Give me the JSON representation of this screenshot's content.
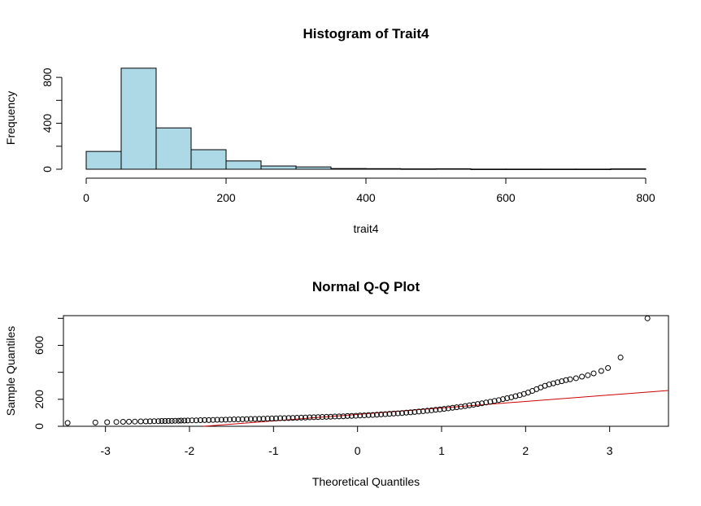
{
  "chart_data": [
    {
      "type": "bar",
      "title": "Histogram of Trait4",
      "xlabel": "trait4",
      "ylabel": "Frequency",
      "xlim": [
        0,
        800
      ],
      "ylim": [
        0,
        900
      ],
      "x_ticks": [
        "0",
        "200",
        "400",
        "600",
        "800"
      ],
      "y_ticks": [
        "0",
        "400",
        "800"
      ],
      "bin_width": 50,
      "bins": [
        {
          "start": 0,
          "end": 50,
          "count": 155
        },
        {
          "start": 50,
          "end": 100,
          "count": 880
        },
        {
          "start": 100,
          "end": 150,
          "count": 360
        },
        {
          "start": 150,
          "end": 200,
          "count": 170
        },
        {
          "start": 200,
          "end": 250,
          "count": 72
        },
        {
          "start": 250,
          "end": 300,
          "count": 28
        },
        {
          "start": 300,
          "end": 350,
          "count": 20
        },
        {
          "start": 350,
          "end": 400,
          "count": 6
        },
        {
          "start": 400,
          "end": 450,
          "count": 5
        },
        {
          "start": 450,
          "end": 500,
          "count": 3
        },
        {
          "start": 500,
          "end": 550,
          "count": 4
        },
        {
          "start": 550,
          "end": 600,
          "count": 1
        },
        {
          "start": 600,
          "end": 650,
          "count": 1
        },
        {
          "start": 650,
          "end": 700,
          "count": 1
        },
        {
          "start": 700,
          "end": 750,
          "count": 1
        },
        {
          "start": 750,
          "end": 800,
          "count": 3
        }
      ],
      "bar_color": "#add8e6",
      "edge_color": "#000000"
    },
    {
      "type": "scatter",
      "title": "Normal Q-Q Plot",
      "xlabel": "Theoretical Quantiles",
      "ylabel": "Sample Quantiles",
      "xlim": [
        -3.5,
        3.7
      ],
      "ylim": [
        0,
        820
      ],
      "x_ticks": [
        "-3",
        "-2",
        "-1",
        "0",
        "1",
        "2",
        "3"
      ],
      "y_ticks": [
        "0",
        "200",
        "600"
      ],
      "points": [
        [
          -3.45,
          25
        ],
        [
          -3.12,
          28
        ],
        [
          -2.98,
          30
        ],
        [
          -2.87,
          32
        ],
        [
          -2.79,
          33
        ],
        [
          -2.72,
          34
        ],
        [
          -2.65,
          35
        ],
        [
          -2.58,
          36
        ],
        [
          -2.52,
          36
        ],
        [
          -2.47,
          37
        ],
        [
          -2.42,
          38
        ],
        [
          -2.37,
          38
        ],
        [
          -2.33,
          39
        ],
        [
          -2.29,
          39
        ],
        [
          -2.25,
          40
        ],
        [
          -2.21,
          40
        ],
        [
          -2.17,
          41
        ],
        [
          -2.13,
          41
        ],
        [
          -2.1,
          42
        ],
        [
          -2.06,
          42
        ],
        [
          -2.02,
          43
        ],
        [
          -1.97,
          44
        ],
        [
          -1.92,
          44
        ],
        [
          -1.87,
          45
        ],
        [
          -1.82,
          46
        ],
        [
          -1.77,
          46
        ],
        [
          -1.72,
          47
        ],
        [
          -1.67,
          48
        ],
        [
          -1.62,
          48
        ],
        [
          -1.57,
          49
        ],
        [
          -1.52,
          50
        ],
        [
          -1.47,
          51
        ],
        [
          -1.42,
          51
        ],
        [
          -1.37,
          52
        ],
        [
          -1.32,
          53
        ],
        [
          -1.27,
          54
        ],
        [
          -1.22,
          54
        ],
        [
          -1.17,
          55
        ],
        [
          -1.12,
          56
        ],
        [
          -1.07,
          57
        ],
        [
          -1.02,
          58
        ],
        [
          -0.97,
          59
        ],
        [
          -0.92,
          60
        ],
        [
          -0.87,
          60
        ],
        [
          -0.82,
          61
        ],
        [
          -0.77,
          62
        ],
        [
          -0.72,
          63
        ],
        [
          -0.67,
          64
        ],
        [
          -0.62,
          65
        ],
        [
          -0.57,
          66
        ],
        [
          -0.52,
          67
        ],
        [
          -0.47,
          68
        ],
        [
          -0.42,
          69
        ],
        [
          -0.37,
          70
        ],
        [
          -0.32,
          71
        ],
        [
          -0.27,
          72
        ],
        [
          -0.22,
          73
        ],
        [
          -0.17,
          74
        ],
        [
          -0.12,
          76
        ],
        [
          -0.07,
          77
        ],
        [
          -0.02,
          78
        ],
        [
          0.03,
          80
        ],
        [
          0.08,
          81
        ],
        [
          0.13,
          83
        ],
        [
          0.18,
          84
        ],
        [
          0.23,
          86
        ],
        [
          0.28,
          88
        ],
        [
          0.33,
          90
        ],
        [
          0.38,
          92
        ],
        [
          0.43,
          94
        ],
        [
          0.48,
          96
        ],
        [
          0.53,
          98
        ],
        [
          0.58,
          101
        ],
        [
          0.63,
          103
        ],
        [
          0.68,
          106
        ],
        [
          0.73,
          109
        ],
        [
          0.78,
          112
        ],
        [
          0.83,
          115
        ],
        [
          0.88,
          118
        ],
        [
          0.93,
          122
        ],
        [
          0.98,
          125
        ],
        [
          1.03,
          129
        ],
        [
          1.08,
          133
        ],
        [
          1.13,
          137
        ],
        [
          1.18,
          141
        ],
        [
          1.23,
          145
        ],
        [
          1.28,
          150
        ],
        [
          1.33,
          155
        ],
        [
          1.38,
          160
        ],
        [
          1.43,
          165
        ],
        [
          1.48,
          170
        ],
        [
          1.53,
          176
        ],
        [
          1.58,
          182
        ],
        [
          1.63,
          188
        ],
        [
          1.68,
          194
        ],
        [
          1.73,
          201
        ],
        [
          1.78,
          208
        ],
        [
          1.83,
          215
        ],
        [
          1.88,
          223
        ],
        [
          1.93,
          231
        ],
        [
          1.98,
          240
        ],
        [
          2.03,
          250
        ],
        [
          2.08,
          262
        ],
        [
          2.13,
          275
        ],
        [
          2.18,
          288
        ],
        [
          2.23,
          300
        ],
        [
          2.28,
          310
        ],
        [
          2.33,
          318
        ],
        [
          2.38,
          326
        ],
        [
          2.43,
          334
        ],
        [
          2.48,
          342
        ],
        [
          2.53,
          348
        ],
        [
          2.6,
          356
        ],
        [
          2.67,
          368
        ],
        [
          2.74,
          378
        ],
        [
          2.81,
          392
        ],
        [
          2.9,
          410
        ],
        [
          2.98,
          432
        ],
        [
          3.13,
          510
        ],
        [
          3.45,
          800
        ]
      ],
      "reference_line": {
        "intercept": 88,
        "slope": 48,
        "color": "#cc0000"
      }
    }
  ]
}
